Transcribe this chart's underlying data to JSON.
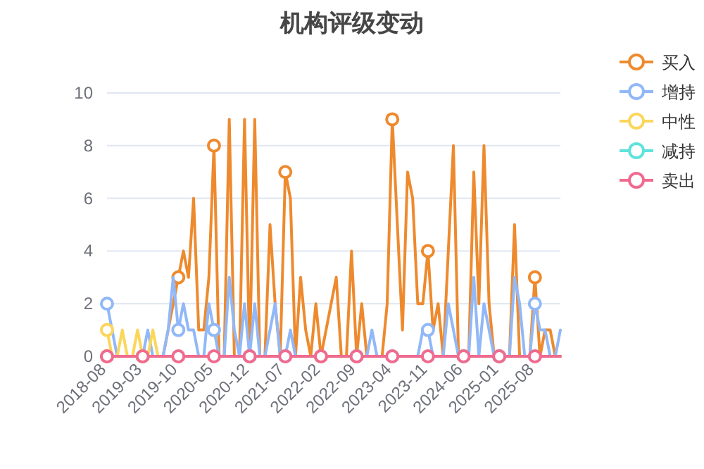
{
  "chart_data": {
    "type": "line",
    "title": "机构评级变动",
    "categories": [
      "2018-08",
      null,
      null,
      null,
      null,
      null,
      null,
      "2019-03",
      null,
      null,
      null,
      null,
      null,
      null,
      "2019-10",
      null,
      null,
      null,
      null,
      null,
      null,
      "2020-05",
      null,
      null,
      null,
      null,
      null,
      null,
      "2020-12",
      null,
      null,
      null,
      null,
      null,
      null,
      "2021-07",
      null,
      null,
      null,
      null,
      null,
      null,
      "2022-02",
      null,
      null,
      null,
      null,
      null,
      null,
      "2022-09",
      null,
      null,
      null,
      null,
      null,
      null,
      "2023-04",
      null,
      null,
      null,
      null,
      null,
      null,
      "2023-11",
      null,
      null,
      null,
      null,
      null,
      null,
      "2024-06",
      null,
      null,
      null,
      null,
      null,
      null,
      "2025-01",
      null,
      null,
      null,
      null,
      null,
      null,
      "2025-08",
      null,
      null,
      null,
      null,
      null
    ],
    "series": [
      {
        "name": "买入",
        "color": "#ee8a2e",
        "values": [
          0,
          0,
          0,
          0,
          0,
          0,
          0,
          0,
          0,
          0,
          0,
          0,
          1,
          2,
          3,
          4,
          3,
          6,
          1,
          1,
          3,
          8,
          0,
          0,
          9,
          0,
          0,
          9,
          0,
          9,
          0,
          0,
          5,
          2,
          0,
          7,
          6,
          0,
          3,
          1,
          0,
          2,
          0,
          1,
          2,
          3,
          0,
          0,
          4,
          0,
          2,
          0,
          0,
          0,
          0,
          2,
          9,
          5,
          1,
          7,
          6,
          2,
          2,
          4,
          1,
          2,
          0,
          4,
          8,
          0,
          0,
          0,
          7,
          2,
          8,
          2,
          0,
          0,
          0,
          0,
          5,
          0,
          0,
          0,
          3,
          0,
          1,
          1,
          0,
          0
        ]
      },
      {
        "name": "增持",
        "color": "#91b8f8",
        "values": [
          2,
          1,
          0,
          0,
          0,
          0,
          0,
          0,
          1,
          0,
          0,
          0,
          1,
          3,
          1,
          2,
          1,
          1,
          0,
          0,
          2,
          1,
          0,
          0,
          3,
          1,
          0,
          2,
          0,
          2,
          0,
          0,
          1,
          2,
          0,
          0,
          1,
          0,
          0,
          0,
          null,
          null,
          null,
          null,
          null,
          null,
          null,
          null,
          0,
          0,
          0,
          0,
          1,
          0,
          0,
          0,
          0,
          0,
          0,
          null,
          null,
          0,
          1,
          1,
          0,
          0,
          0,
          2,
          1,
          0,
          0,
          0,
          3,
          0,
          2,
          1,
          0,
          0,
          0,
          0,
          3,
          2,
          0,
          0,
          2,
          1,
          1,
          0,
          0,
          1
        ]
      },
      {
        "name": "中性",
        "color": "#fbd65a",
        "values": [
          1,
          0,
          0,
          1,
          0,
          0,
          1,
          0,
          0,
          1,
          0,
          0,
          0,
          null,
          null,
          null,
          null,
          null,
          null,
          null,
          null,
          null,
          null,
          null,
          null,
          null,
          null,
          null,
          null,
          null,
          null,
          null,
          null,
          null,
          null,
          null,
          null,
          null,
          null,
          null,
          null,
          null,
          null,
          null,
          null,
          null,
          null,
          null,
          null,
          null,
          null,
          null,
          null,
          null,
          null,
          null,
          null,
          null,
          null,
          null,
          null,
          null,
          null,
          null,
          null,
          null,
          null,
          null,
          null,
          null,
          null,
          null,
          null,
          null,
          null,
          null,
          null,
          null,
          null,
          null,
          null,
          null,
          null,
          null,
          null,
          null,
          null,
          null,
          null,
          null
        ]
      },
      {
        "name": "减持",
        "color": "#5fe3dd",
        "values": [
          null,
          null,
          null,
          null,
          null,
          null,
          null,
          null,
          null,
          null,
          null,
          null,
          null,
          null,
          null,
          null,
          null,
          null,
          null,
          null,
          null,
          null,
          null,
          null,
          null,
          null,
          null,
          null,
          null,
          null,
          null,
          null,
          null,
          null,
          null,
          null,
          null,
          null,
          null,
          null,
          null,
          null,
          null,
          null,
          null,
          null,
          null,
          null,
          null,
          null,
          null,
          null,
          null,
          null,
          null,
          null,
          null,
          null,
          null,
          null,
          null,
          null,
          null,
          null,
          null,
          null,
          null,
          null,
          null,
          null,
          null,
          null,
          null,
          null,
          null,
          null,
          null,
          null,
          null,
          null,
          null,
          null,
          null,
          null,
          null,
          null,
          null,
          null,
          null,
          null
        ]
      },
      {
        "name": "卖出",
        "color": "#ef6b8f",
        "values": [
          0,
          0,
          0,
          0,
          0,
          0,
          0,
          0,
          0,
          0,
          0,
          0,
          0,
          0,
          0,
          0,
          0,
          0,
          0,
          0,
          0,
          0,
          0,
          0,
          0,
          0,
          0,
          0,
          0,
          0,
          0,
          0,
          0,
          0,
          0,
          0,
          0,
          0,
          0,
          0,
          0,
          0,
          0,
          0,
          0,
          0,
          0,
          0,
          0,
          0,
          0,
          0,
          0,
          0,
          0,
          0,
          0,
          0,
          0,
          0,
          0,
          0,
          0,
          0,
          0,
          0,
          0,
          0,
          0,
          0,
          0,
          0,
          0,
          0,
          0,
          0,
          0,
          0,
          0,
          0,
          0,
          0,
          0,
          0,
          0,
          0,
          0,
          0,
          0,
          0
        ]
      }
    ],
    "ylim": [
      0,
      10
    ],
    "yticks": [
      0,
      2,
      4,
      6,
      8,
      10
    ],
    "grid": "y",
    "legend": "top right",
    "line_style": "solid"
  }
}
